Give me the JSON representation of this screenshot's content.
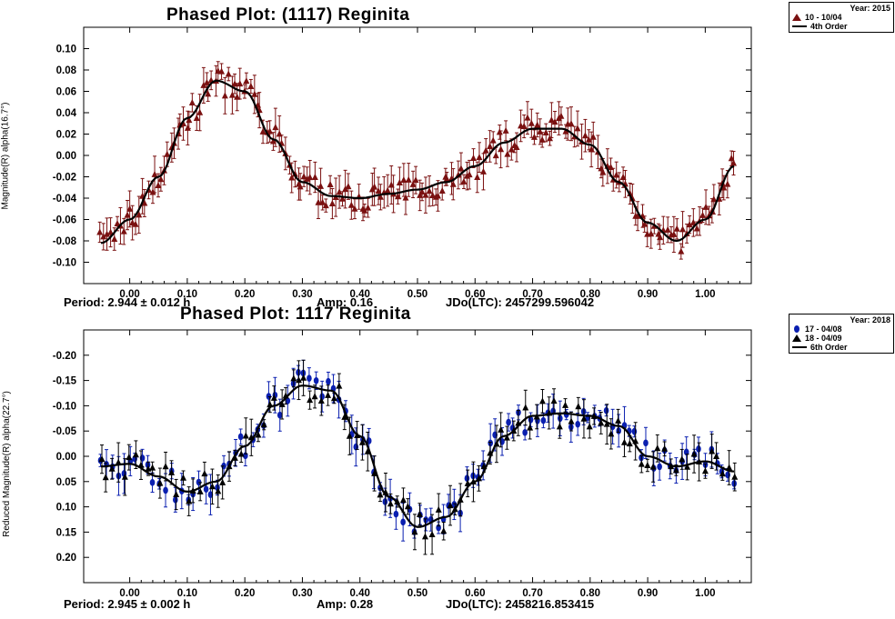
{
  "chart_data": [
    {
      "type": "scatter",
      "title": "Phased Plot: (1117) Reginita",
      "xlabel": "",
      "ylabel": "Magnitude(R) alpha(16.7°)",
      "xlim": [
        -0.08,
        1.08
      ],
      "ylim": [
        -0.12,
        0.12
      ],
      "y_inverted": false,
      "xticks": [
        "0.00",
        "0.10",
        "0.20",
        "0.30",
        "0.40",
        "0.50",
        "0.60",
        "0.70",
        "0.80",
        "0.90",
        "1.00"
      ],
      "yticks": [
        "0.10",
        "0.08",
        "0.06",
        "0.04",
        "0.02",
        "0.00",
        "-0.02",
        "-0.04",
        "-0.06",
        "-0.08",
        "-0.10"
      ],
      "legend": {
        "header": "Year: 2015",
        "entries": [
          {
            "label": "10 - 10/04",
            "marker": "triangle",
            "color": "#7a1010"
          },
          {
            "label": "4th Order",
            "marker": "line",
            "color": "#000000"
          }
        ]
      },
      "fit": {
        "name": "4th Order",
        "x": [
          -0.05,
          0.0,
          0.05,
          0.1,
          0.15,
          0.2,
          0.25,
          0.3,
          0.35,
          0.4,
          0.45,
          0.5,
          0.55,
          0.6,
          0.65,
          0.7,
          0.75,
          0.8,
          0.85,
          0.9,
          0.95,
          1.0,
          1.05
        ],
        "y": [
          -0.082,
          -0.06,
          -0.02,
          0.035,
          0.07,
          0.06,
          0.015,
          -0.025,
          -0.038,
          -0.04,
          -0.036,
          -0.032,
          -0.025,
          -0.01,
          0.012,
          0.025,
          0.025,
          0.01,
          -0.025,
          -0.063,
          -0.08,
          -0.06,
          -0.01
        ]
      },
      "footer": {
        "period": "Period: 2.944 ± 0.012 h",
        "amp": "Amp: 0.16",
        "jd": "JDo(LTC): 2457299.596042"
      }
    },
    {
      "type": "scatter",
      "title": "Phased Plot: 1117 Reginita",
      "xlabel": "",
      "ylabel": "Reduced Magnitude(R) alpha(22.7°)",
      "xlim": [
        -0.08,
        1.08
      ],
      "ylim": [
        -0.25,
        0.25
      ],
      "y_inverted": true,
      "xticks": [
        "0.00",
        "0.10",
        "0.20",
        "0.30",
        "0.40",
        "0.50",
        "0.60",
        "0.70",
        "0.80",
        "0.90",
        "1.00"
      ],
      "yticks": [
        "-0.20",
        "-0.15",
        "-0.10",
        "-0.05",
        "0.00",
        "0.05",
        "0.10",
        "0.15",
        "0.20"
      ],
      "legend": {
        "header": "Year: 2018",
        "entries": [
          {
            "label": "17 - 04/08",
            "marker": "circle",
            "color": "#0a1fb0"
          },
          {
            "label": "18 - 04/09",
            "marker": "triangle",
            "color": "#000000"
          },
          {
            "label": "6th Order",
            "marker": "line",
            "color": "#000000"
          }
        ]
      },
      "fit": {
        "name": "6th Order",
        "x": [
          -0.05,
          0.0,
          0.05,
          0.1,
          0.15,
          0.2,
          0.25,
          0.3,
          0.35,
          0.4,
          0.45,
          0.5,
          0.55,
          0.6,
          0.65,
          0.7,
          0.75,
          0.8,
          0.85,
          0.9,
          0.95,
          1.0,
          1.05
        ],
        "y": [
          0.02,
          0.015,
          0.04,
          0.07,
          0.05,
          -0.02,
          -0.1,
          -0.14,
          -0.13,
          -0.04,
          0.08,
          0.14,
          0.12,
          0.05,
          -0.04,
          -0.08,
          -0.085,
          -0.08,
          -0.06,
          0.0,
          0.02,
          0.01,
          0.03
        ]
      },
      "footer": {
        "period": "Period: 2.945 ± 0.002 h",
        "amp": "Amp: 0.28",
        "jd": "JDo(LTC): 2458216.853415"
      }
    }
  ]
}
